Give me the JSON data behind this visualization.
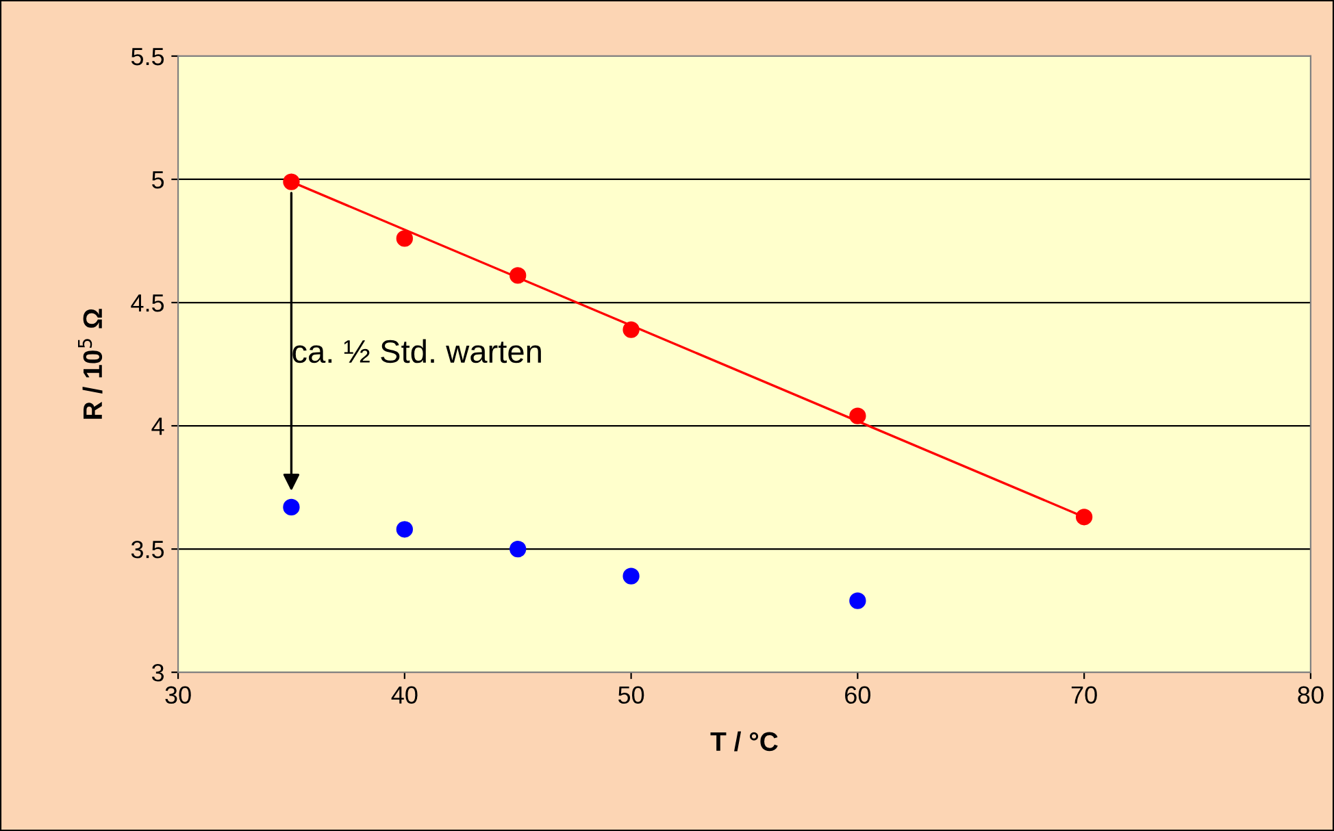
{
  "chart_data": {
    "type": "scatter",
    "xlabel": "T / °C",
    "ylabel": "R / 10$^{5}$ Ω",
    "xlim": [
      30,
      80
    ],
    "xticks": [
      30,
      40,
      50,
      60,
      70,
      80
    ],
    "ylim": [
      3,
      5.5
    ],
    "yticks": [
      3,
      3.5,
      4,
      4.5,
      5,
      5.5
    ],
    "grid": "y",
    "legend": false,
    "series": [
      {
        "color": "#ff0000",
        "marker": "circle",
        "x": [
          35,
          40,
          45,
          50,
          60,
          70
        ],
        "values": [
          4.99,
          4.76,
          4.61,
          4.39,
          4.04,
          3.63
        ]
      },
      {
        "color": "#0000ff",
        "marker": "circle",
        "x": [
          35,
          40,
          45,
          50,
          60
        ],
        "values": [
          3.67,
          3.58,
          3.5,
          3.39,
          3.29
        ]
      },
      {
        "type": "line",
        "color": "#ff0000",
        "marker": "none",
        "x": [
          35,
          70
        ],
        "values": [
          4.99,
          3.63
        ]
      }
    ],
    "annotations": [
      "ca. ½ Std. warten"
    ]
  }
}
